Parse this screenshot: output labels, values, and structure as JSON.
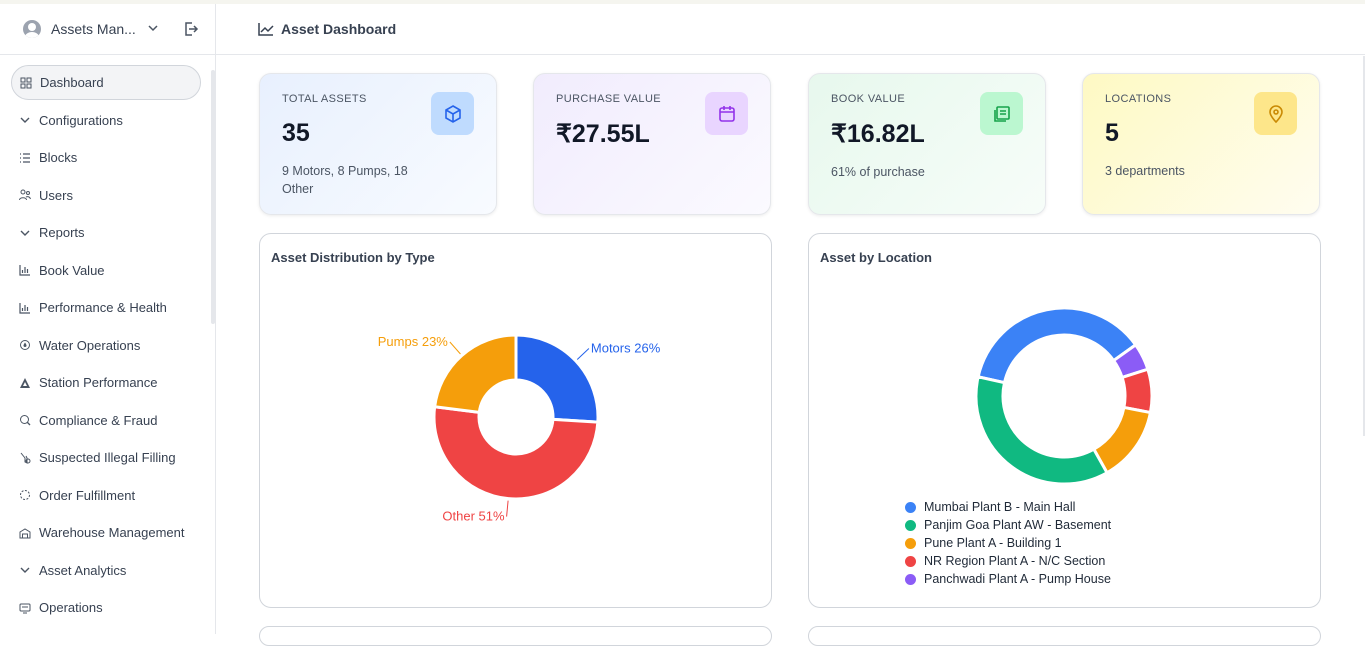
{
  "sidebar": {
    "title": "Assets Man...",
    "items": [
      {
        "label": "Dashboard",
        "icon": "grid-icon"
      },
      {
        "label": "Configurations",
        "icon": "chevron-down-icon"
      },
      {
        "label": "Blocks",
        "icon": "list-icon"
      },
      {
        "label": "Users",
        "icon": "users-icon"
      },
      {
        "label": "Reports",
        "icon": "chevron-down-icon"
      },
      {
        "label": "Book Value",
        "icon": "bar-chart-icon"
      },
      {
        "label": "Performance & Health",
        "icon": "bar-chart-icon"
      },
      {
        "label": "Water Operations",
        "icon": "droplet-icon"
      },
      {
        "label": "Station Performance",
        "icon": "triangle-icon"
      },
      {
        "label": "Compliance & Fraud",
        "icon": "shield-icon"
      },
      {
        "label": "Suspected Illegal Filling",
        "icon": "filter-icon"
      },
      {
        "label": "Order Fulfillment",
        "icon": "circle-dashed-icon"
      },
      {
        "label": "Warehouse Management",
        "icon": "warehouse-icon"
      },
      {
        "label": "Asset Analytics",
        "icon": "chevron-down-icon"
      },
      {
        "label": "Operations",
        "icon": "monitor-icon"
      }
    ]
  },
  "header": {
    "title": "Asset Dashboard"
  },
  "cards": [
    {
      "label": "TOTAL ASSETS",
      "value": "35",
      "sub": "9 Motors, 8 Pumps, 18 Other",
      "icon": "cube-icon",
      "accent": "#2563eb"
    },
    {
      "label": "PURCHASE VALUE",
      "value": "₹27.55L",
      "sub": "",
      "icon": "calendar-icon",
      "accent": "#9333ea"
    },
    {
      "label": "BOOK VALUE",
      "value": "₹16.82L",
      "sub": "61% of purchase",
      "icon": "book-icon",
      "accent": "#16a34a"
    },
    {
      "label": "LOCATIONS",
      "value": "5",
      "sub": "3 departments",
      "icon": "map-pin-icon",
      "accent": "#ca8a04"
    }
  ],
  "charts": {
    "type_title": "Asset Distribution by Type",
    "location_title": "Asset by Location"
  },
  "chart_data": [
    {
      "type": "pie",
      "title": "Asset Distribution by Type",
      "categories": [
        "Motors",
        "Pumps",
        "Other"
      ],
      "values": [
        26,
        23,
        51
      ],
      "labels": [
        "Motors 26%",
        "Pumps 23%",
        "Other 51%"
      ],
      "colors": [
        "#2563eb",
        "#f59e0b",
        "#ef4444"
      ]
    },
    {
      "type": "pie",
      "title": "Asset by Location",
      "categories": [
        "Mumbai Plant B - Main Hall",
        "Panjim Goa Plant AW - Basement",
        "Pune Plant A - Building 1",
        "NR Region Plant A - N/C Section",
        "Panchwadi Plant A - Pump House"
      ],
      "values": [
        37,
        37,
        14,
        8,
        5
      ],
      "colors": [
        "#3b82f6",
        "#10b981",
        "#f59e0b",
        "#ef4444",
        "#8b5cf6"
      ],
      "legend": "bottom"
    }
  ]
}
